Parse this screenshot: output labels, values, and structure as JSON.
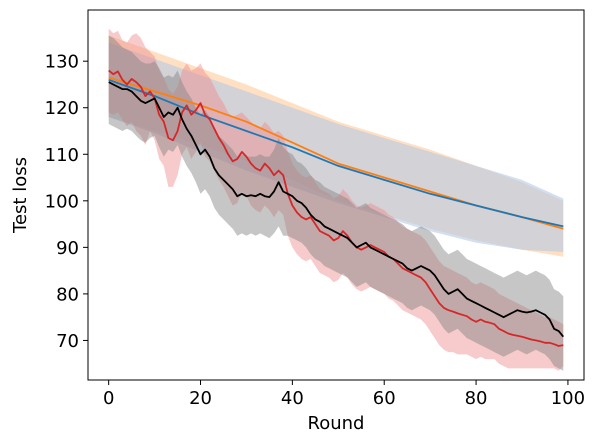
{
  "chart_data": {
    "type": "line",
    "xlabel": "Round",
    "ylabel": "Test loss",
    "xlim": [
      -4.5,
      103.5
    ],
    "ylim": [
      61.5,
      141
    ],
    "xticks": [
      0,
      20,
      40,
      60,
      80,
      100
    ],
    "yticks": [
      70,
      80,
      90,
      100,
      110,
      120,
      130
    ],
    "grid": false,
    "legend": "none",
    "series": [
      {
        "color": "#ff7f0e",
        "band_color": "#ffbb78",
        "band_opacity": 0.45,
        "x": [
          0,
          10,
          20,
          30,
          40,
          50,
          60,
          70,
          80,
          90,
          99
        ],
        "y": [
          126.5,
          123.5,
          120.5,
          117,
          112.5,
          108,
          105,
          102,
          99,
          96.5,
          94
        ],
        "upper": [
          135.5,
          132,
          128.5,
          125,
          121,
          117,
          114,
          111,
          107.5,
          104,
          100
        ],
        "lower": [
          118,
          115,
          112,
          108.5,
          104.5,
          100,
          97,
          94,
          91.5,
          89.5,
          88
        ]
      },
      {
        "color": "#1f77b4",
        "band_color": "#aec7e8",
        "band_opacity": 0.55,
        "x": [
          0,
          10,
          20,
          30,
          40,
          50,
          60,
          70,
          80,
          90,
          99
        ],
        "y": [
          126,
          122.5,
          118.5,
          115,
          111.5,
          107.5,
          104.5,
          101.5,
          99,
          96.5,
          94.5
        ],
        "upper": [
          134,
          130.5,
          127,
          123.5,
          120,
          116.5,
          113.5,
          110.5,
          107.5,
          104.5,
          100.5
        ],
        "lower": [
          118,
          114.5,
          110.5,
          106.5,
          103,
          99.5,
          96.5,
          93.5,
          91,
          89.5,
          89
        ]
      },
      {
        "color": "#d62728",
        "band_color": "#ee8a8b",
        "band_opacity": 0.45,
        "x": [
          0,
          1,
          2,
          3,
          4,
          5,
          6,
          7,
          8,
          9,
          10,
          11,
          12,
          13,
          14,
          15,
          16,
          17,
          18,
          19,
          20,
          21,
          22,
          23,
          24,
          25,
          26,
          27,
          28,
          29,
          30,
          31,
          32,
          33,
          34,
          35,
          36,
          37,
          38,
          39,
          40,
          41,
          42,
          43,
          44,
          45,
          46,
          47,
          48,
          49,
          50,
          51,
          52,
          53,
          54,
          55,
          56,
          57,
          58,
          59,
          60,
          61,
          62,
          63,
          64,
          65,
          66,
          67,
          68,
          69,
          70,
          71,
          72,
          73,
          74,
          75,
          76,
          77,
          78,
          79,
          80,
          81,
          82,
          83,
          84,
          85,
          86,
          87,
          88,
          89,
          90,
          91,
          92,
          93,
          94,
          95,
          96,
          97,
          98,
          99
        ],
        "y": [
          128,
          127.2,
          127.8,
          126,
          125,
          126.2,
          125.5,
          124.5,
          122.5,
          123.5,
          122,
          118.5,
          117,
          113.5,
          113,
          115,
          119,
          120.5,
          118.5,
          119.5,
          121,
          118.5,
          117.5,
          115.5,
          113.5,
          112,
          110,
          108.5,
          109,
          110.5,
          109.5,
          108,
          107,
          106.5,
          108,
          107,
          105.5,
          106.5,
          105.5,
          101.5,
          99,
          97.5,
          96.5,
          96,
          96.5,
          95,
          93.5,
          93,
          92.5,
          91.5,
          92,
          93.5,
          92.5,
          91,
          90,
          89.5,
          90,
          90.5,
          90,
          89.5,
          89,
          88,
          87.5,
          86.5,
          85.5,
          85,
          84.5,
          84,
          83.5,
          82.5,
          81,
          79.5,
          78,
          77,
          76.5,
          76.2,
          75.8,
          75.5,
          75.2,
          74.5,
          74,
          74.5,
          74,
          73.8,
          73.5,
          72.5,
          72,
          71.5,
          71.2,
          71,
          70.8,
          70.5,
          70.2,
          70,
          69.8,
          69.5,
          69.5,
          69.2,
          68.8,
          69
        ],
        "upper": [
          137,
          136,
          136.5,
          134.5,
          134,
          135.5,
          136,
          135,
          133,
          132,
          131,
          128,
          126.5,
          124,
          123,
          124.5,
          128,
          129.5,
          128,
          128.5,
          129.5,
          127.5,
          126.5,
          124.5,
          122.5,
          121,
          119,
          118,
          118.5,
          119,
          118,
          117,
          116,
          115.5,
          117,
          116,
          114.5,
          115,
          114,
          110.5,
          108,
          106.5,
          105.5,
          105,
          105.5,
          104,
          102.5,
          102,
          101.5,
          100.5,
          101,
          102.5,
          101.5,
          100,
          99,
          98.5,
          99,
          99.5,
          99,
          98.5,
          98,
          97,
          96.5,
          95.5,
          94.5,
          94,
          93.5,
          93,
          92.5,
          91.5,
          90,
          88.5,
          87,
          86,
          85.5,
          85,
          84.5,
          84,
          83.5,
          82.5,
          82,
          82.5,
          82,
          81.5,
          81,
          80,
          79.5,
          79,
          78.5,
          78,
          77.5,
          77,
          76.5,
          76,
          75.5,
          75,
          75,
          74.5,
          74,
          73.5
        ],
        "lower": [
          119,
          118.5,
          119,
          117.5,
          116,
          117,
          115,
          114,
          112,
          115,
          113,
          109,
          107.5,
          103,
          103,
          105.5,
          110,
          111.5,
          109,
          110.5,
          112.5,
          109.5,
          108.5,
          106.5,
          104.5,
          103,
          101,
          99,
          99.5,
          102,
          101,
          99,
          98,
          97.5,
          99,
          98,
          96.5,
          98,
          97,
          92.5,
          90,
          88.5,
          87.5,
          87,
          87.5,
          86,
          84.5,
          84,
          83.5,
          82.5,
          83,
          84.5,
          83.5,
          82,
          81,
          80.5,
          81,
          81.5,
          81,
          80.5,
          80,
          79,
          78.5,
          77.5,
          76.5,
          76,
          75.5,
          75,
          74.5,
          73.5,
          72,
          70.5,
          69,
          68,
          67.5,
          67.5,
          67,
          67,
          67,
          66.5,
          66,
          66.5,
          66,
          66,
          66,
          65,
          64.5,
          64,
          64,
          64,
          64,
          64,
          64,
          64,
          64,
          64,
          64,
          64,
          63.5,
          64.5
        ]
      },
      {
        "color": "#000000",
        "band_color": "#808080",
        "band_opacity": 0.45,
        "x": [
          0,
          1,
          2,
          3,
          4,
          5,
          6,
          7,
          8,
          9,
          10,
          11,
          12,
          13,
          14,
          15,
          16,
          17,
          18,
          19,
          20,
          21,
          22,
          23,
          24,
          25,
          26,
          27,
          28,
          29,
          30,
          31,
          32,
          33,
          34,
          35,
          36,
          37,
          38,
          39,
          40,
          41,
          42,
          43,
          44,
          45,
          46,
          47,
          48,
          49,
          50,
          51,
          52,
          53,
          54,
          55,
          56,
          57,
          58,
          59,
          60,
          61,
          62,
          63,
          64,
          65,
          66,
          67,
          68,
          69,
          70,
          71,
          72,
          73,
          74,
          75,
          76,
          77,
          78,
          79,
          80,
          81,
          82,
          83,
          84,
          85,
          86,
          87,
          88,
          89,
          90,
          91,
          92,
          93,
          94,
          95,
          96,
          97,
          98,
          99
        ],
        "y": [
          125.5,
          125,
          124.5,
          124,
          124,
          123.5,
          122.5,
          121.5,
          121,
          121.5,
          122,
          120,
          118,
          119,
          118.5,
          120,
          117.5,
          115.5,
          114,
          112,
          110,
          111,
          109.5,
          107,
          105.5,
          104.5,
          103.5,
          102.5,
          101,
          101.5,
          101,
          101.2,
          101,
          101.5,
          101,
          100.8,
          102,
          104,
          102,
          101.5,
          101,
          100,
          99.5,
          98.5,
          97,
          96,
          95.5,
          94.5,
          94,
          93.5,
          93,
          92.5,
          92,
          91,
          90,
          90.5,
          91,
          90,
          89.5,
          89,
          88.5,
          88,
          87.5,
          87,
          86.5,
          85.5,
          85,
          85.5,
          86,
          85.5,
          85,
          84,
          82.5,
          81,
          80,
          80.5,
          81,
          80,
          79,
          78.5,
          78,
          77.5,
          77,
          76.5,
          76,
          75.5,
          75,
          75.5,
          76,
          76.5,
          76.2,
          76,
          76.2,
          76.5,
          76,
          75.5,
          74.5,
          72.5,
          72,
          70.8
        ],
        "upper": [
          135.5,
          135,
          134,
          133,
          132.5,
          132,
          131,
          130,
          129.5,
          129.5,
          130,
          128.5,
          126.5,
          127,
          126.5,
          128,
          125.5,
          123.5,
          122,
          120,
          118.5,
          119.5,
          118,
          115.5,
          114,
          113,
          112,
          111,
          109.5,
          110,
          109.5,
          109.5,
          109.5,
          110,
          109.5,
          109.5,
          111,
          113.5,
          111.5,
          110.5,
          110,
          108.5,
          108,
          107,
          105.5,
          104.5,
          104,
          103,
          102.5,
          102,
          101.5,
          101,
          100.5,
          99.5,
          98.5,
          99,
          99.5,
          98.5,
          98,
          97.5,
          97,
          96.5,
          96,
          95.5,
          95,
          94,
          93.5,
          94,
          94.5,
          94,
          93.5,
          92.5,
          91,
          89.5,
          88.5,
          89,
          89.5,
          88.5,
          87.5,
          87,
          86.5,
          86,
          85.5,
          85,
          84.5,
          84,
          83.5,
          84,
          84.5,
          85,
          84.5,
          84,
          84.5,
          85,
          84.5,
          84,
          83,
          81,
          80.5,
          79.5
        ],
        "lower": [
          116.5,
          116,
          115.5,
          115,
          115.5,
          115,
          114,
          113,
          112.5,
          113.5,
          114,
          111.5,
          109.5,
          111,
          110.5,
          112,
          109.5,
          107.5,
          106,
          104,
          101.5,
          102.5,
          101,
          98.5,
          97,
          96,
          95,
          94,
          92.5,
          93,
          92.5,
          93,
          92.5,
          93,
          92.5,
          92,
          93,
          94.5,
          92.5,
          92.5,
          92,
          91.5,
          91,
          90,
          88.5,
          87.5,
          87,
          86,
          85.5,
          85,
          84.5,
          84,
          83.5,
          82.5,
          81.5,
          82,
          82.5,
          81.5,
          81,
          80.5,
          80,
          79.5,
          79,
          78.5,
          78,
          77,
          76.5,
          77,
          77.5,
          77,
          76.5,
          75.5,
          74,
          72.5,
          71.5,
          72,
          72.5,
          71.5,
          70.5,
          70,
          69.5,
          69,
          68.5,
          68,
          67.5,
          67,
          66.5,
          67,
          67.5,
          68,
          67.5,
          67,
          67.5,
          68,
          67.5,
          67,
          66,
          64.5,
          64,
          63.5
        ]
      }
    ]
  }
}
